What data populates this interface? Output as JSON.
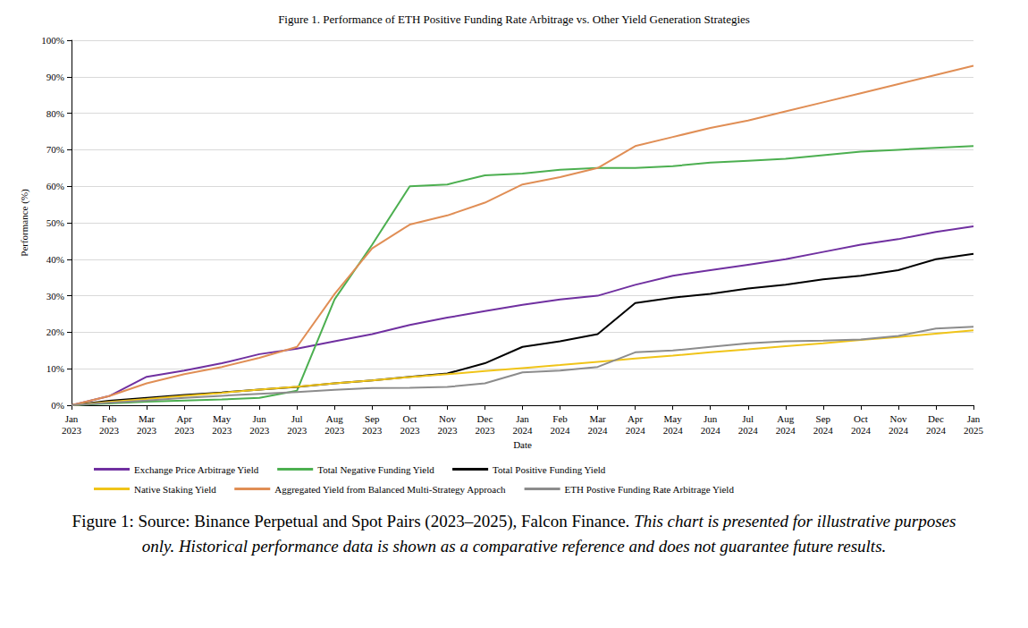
{
  "chart_data": {
    "type": "line",
    "title": "Figure 1. Performance of ETH Positive Funding Rate Arbitrage vs. Other Yield Generation Strategies",
    "x_label": "Date",
    "y_label": "Performance (%)",
    "categories": [
      "Jan 2023",
      "Feb 2023",
      "Mar 2023",
      "Apr 2023",
      "May 2023",
      "Jun 2023",
      "Jul 2023",
      "Aug 2023",
      "Sep 2023",
      "Oct 2023",
      "Nov 2023",
      "Dec 2023",
      "Jan 2024",
      "Feb 2024",
      "Mar 2024",
      "Apr 2024",
      "May 2024",
      "Jun 2024",
      "Jul 2024",
      "Aug 2024",
      "Sep 2024",
      "Oct 2024",
      "Nov 2024",
      "Dec 2024",
      "Jan 2025"
    ],
    "series": [
      {
        "name": "Exchange Price Arbitrage Yield",
        "color": "#7030a0",
        "values": [
          0,
          2.5,
          7.8,
          9.5,
          11.5,
          14,
          15.5,
          17.5,
          19.5,
          22,
          24,
          25.8,
          27.5,
          29,
          30,
          33,
          35.5,
          37,
          38.5,
          40,
          42,
          44,
          45.5,
          47.5,
          49
        ]
      },
      {
        "name": "Total Negative Funding Yield",
        "color": "#4caf50",
        "values": [
          0,
          0.5,
          1,
          1.3,
          1.6,
          2,
          4,
          29,
          44,
          60,
          60.5,
          63,
          63.5,
          64.5,
          65,
          65,
          65.5,
          66.5,
          67,
          67.5,
          68.5,
          69.5,
          70,
          70.5,
          71
        ]
      },
      {
        "name": "Total Positive Funding Yield",
        "color": "#000000",
        "values": [
          0,
          1.2,
          2,
          2.8,
          3.5,
          4.3,
          5,
          6,
          6.8,
          7.8,
          8.7,
          11.5,
          16,
          17.5,
          19.5,
          28,
          29.5,
          30.5,
          32,
          33,
          34.5,
          35.5,
          37,
          40,
          41.5
        ]
      },
      {
        "name": "Native Staking Yield",
        "color": "#f0c419",
        "values": [
          0,
          0.9,
          1.7,
          2.6,
          3.4,
          4.3,
          5.1,
          6,
          6.8,
          7.7,
          8.5,
          9.4,
          10.2,
          11,
          11.9,
          12.8,
          13.6,
          14.5,
          15.3,
          16.2,
          17,
          17.9,
          18.7,
          19.6,
          20.5
        ]
      },
      {
        "name": "Aggregated Yield from Balanced Multi-Strategy Approach",
        "color": "#e08e55",
        "values": [
          0,
          2.5,
          6,
          8.5,
          10.5,
          13,
          16,
          30.5,
          43,
          49.5,
          52,
          55.5,
          60.5,
          62.5,
          65,
          71,
          73.5,
          76,
          78,
          80.5,
          83,
          85.5,
          88,
          90.5,
          93
        ]
      },
      {
        "name": "ETH Postive Funding Rate Arbitrage Yield",
        "color": "#8c8c8c",
        "values": [
          0,
          0.7,
          1.3,
          2,
          2.6,
          3.1,
          3.6,
          4.2,
          4.7,
          4.8,
          5,
          6,
          9,
          9.5,
          10.5,
          14.5,
          15,
          16,
          17,
          17.5,
          17.7,
          18,
          19,
          21,
          21.5
        ]
      }
    ],
    "ylim": [
      0,
      100
    ],
    "yticks": [
      {
        "value": 0,
        "label": "0%"
      },
      {
        "value": 10,
        "label": "10%"
      },
      {
        "value": 20,
        "label": "20%"
      },
      {
        "value": 30,
        "label": "30%"
      },
      {
        "value": 40,
        "label": "40%"
      },
      {
        "value": 50,
        "label": "50%"
      },
      {
        "value": 60,
        "label": "60%"
      },
      {
        "value": 70,
        "label": "70%"
      },
      {
        "value": 80,
        "label": "80%"
      },
      {
        "value": 90,
        "label": "90%"
      },
      {
        "value": 100,
        "label": "100%"
      }
    ],
    "grid": true,
    "legend": "bottom"
  },
  "caption": {
    "source": "Figure 1: Source: Binance Perpetual and Spot Pairs (2023–2025), Falcon Finance.",
    "note": "This chart is presented for illustrative purposes only. Historical performance data is shown as a comparative reference and does not guarantee future results."
  }
}
